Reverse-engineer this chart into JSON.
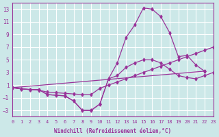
{
  "xlabel": "Windchill (Refroidissement éolien,°C)",
  "bg_color": "#cce8e8",
  "line_color": "#993399",
  "xlim": [
    0,
    23
  ],
  "ylim": [
    -4,
    14
  ],
  "xticks": [
    0,
    1,
    2,
    3,
    4,
    5,
    6,
    7,
    8,
    9,
    10,
    11,
    12,
    13,
    14,
    15,
    16,
    17,
    18,
    19,
    20,
    21,
    22,
    23
  ],
  "yticks": [
    -3,
    -1,
    1,
    3,
    5,
    7,
    9,
    11,
    13
  ],
  "curves": [
    {
      "x": [
        0,
        1,
        2,
        3,
        4,
        5,
        6,
        7,
        8,
        9,
        10,
        11,
        12,
        13,
        14,
        15,
        16,
        17,
        18,
        19,
        20,
        21,
        22
      ],
      "y": [
        0.6,
        0.4,
        0.3,
        0.3,
        -0.5,
        -0.6,
        -0.7,
        -1.5,
        -3.0,
        -3.0,
        -2.0,
        2.0,
        4.5,
        8.5,
        10.5,
        13.2,
        13.0,
        11.8,
        9.3,
        5.5,
        5.7,
        4.2,
        3.2
      ]
    },
    {
      "x": [
        0,
        1,
        2,
        3,
        4,
        5,
        6,
        7,
        8,
        9,
        10,
        11,
        12,
        13,
        14,
        15,
        16,
        17,
        18,
        19,
        20,
        21,
        22,
        23
      ],
      "y": [
        0.6,
        0.4,
        0.3,
        0.3,
        -0.5,
        -0.6,
        -0.7,
        -1.5,
        -3.0,
        -3.0,
        -2.0,
        2.0,
        2.5,
        3.8,
        4.5,
        5.0,
        5.0,
        4.5,
        3.5,
        2.5,
        2.2,
        2.0,
        2.5,
        3.0
      ]
    },
    {
      "x": [
        0,
        1,
        2,
        3,
        4,
        5,
        6,
        7,
        8,
        9,
        10,
        11,
        12,
        13,
        14,
        15,
        16,
        17,
        18,
        19,
        20,
        21,
        22,
        23
      ],
      "y": [
        0.6,
        0.4,
        0.3,
        0.2,
        -0.1,
        -0.2,
        -0.3,
        -0.4,
        -0.5,
        -0.5,
        0.5,
        1.0,
        1.5,
        2.0,
        2.5,
        3.0,
        3.5,
        4.0,
        4.5,
        5.0,
        5.5,
        6.0,
        6.5,
        7.0
      ]
    },
    {
      "x": [
        0,
        22
      ],
      "y": [
        0.6,
        3.2
      ]
    }
  ]
}
